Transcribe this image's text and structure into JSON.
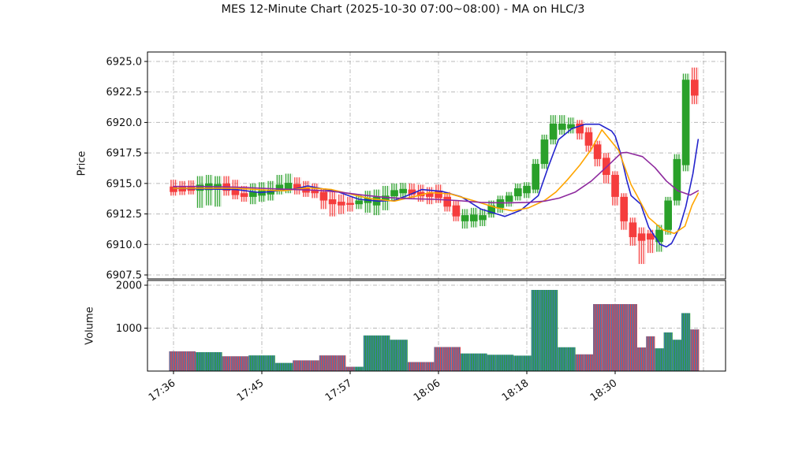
{
  "title": "MES 12-Minute Chart (2025-10-30 07:00~08:00) - MA on HLC/3",
  "chart_data": {
    "type": "candlestick",
    "symbol": "MES",
    "interval_label": "12-Minute",
    "session_label": "2025-10-30 07:00~08:00",
    "ma_source_label": "MA on HLC/3",
    "grid": true,
    "grid_style": "dashdot",
    "panels": [
      "price",
      "volume"
    ],
    "price_axis": {
      "label": "Price",
      "tick_values": [
        6925.0,
        6922.5,
        6920.0,
        6917.5,
        6915.0,
        6912.5,
        6910.0,
        6907.5
      ],
      "tick_labels": [
        "6925.0",
        "6922.5",
        "6920.0",
        "6917.5",
        "6915.0",
        "6912.5",
        "6910.0",
        "6907.5"
      ],
      "range": [
        6906.9,
        6925.9
      ]
    },
    "volume_axis": {
      "label": "Volume",
      "tick_values": [
        2000,
        1000
      ],
      "tick_labels": [
        "2000",
        "1000"
      ],
      "range": [
        0,
        2110
      ]
    },
    "x_axis": {
      "tick_labels": [
        "17:36",
        "17:45",
        "17:57",
        "18:06",
        "18:18",
        "18:30"
      ],
      "tick_indices": [
        0,
        10,
        20,
        30,
        40,
        50
      ],
      "unlabeled_grid_index": 60
    },
    "colors": {
      "up": "#2aa02a",
      "down": "#f53d3d",
      "volume_bar": "#3d7ab5",
      "ma_fast": "#2323cc",
      "ma_medium": "#ffa500",
      "ma_slow": "#8e2a9e",
      "grid": "#b8b8b8",
      "spine": "#000000"
    },
    "candles": [
      [
        6914.75,
        6915.3,
        6914.0,
        6914.3,
        460
      ],
      [
        6914.7,
        6915.2,
        6914.05,
        6914.35,
        460
      ],
      [
        6914.75,
        6915.25,
        6914.1,
        6914.4,
        460
      ],
      [
        6914.4,
        6915.6,
        6913.0,
        6914.9,
        440
      ],
      [
        6914.45,
        6915.7,
        6913.2,
        6915.0,
        440
      ],
      [
        6914.5,
        6915.6,
        6913.1,
        6914.95,
        440
      ],
      [
        6915.0,
        6915.6,
        6914.0,
        6914.4,
        345
      ],
      [
        6914.5,
        6915.3,
        6913.7,
        6914.05,
        345
      ],
      [
        6914.2,
        6914.8,
        6913.5,
        6913.9,
        345
      ],
      [
        6913.9,
        6915.0,
        6913.3,
        6914.3,
        365
      ],
      [
        6914.0,
        6915.1,
        6913.5,
        6914.4,
        365
      ],
      [
        6914.1,
        6915.2,
        6913.6,
        6914.45,
        365
      ],
      [
        6914.45,
        6915.7,
        6914.1,
        6914.9,
        190
      ],
      [
        6914.55,
        6915.8,
        6914.2,
        6915.05,
        190
      ],
      [
        6914.95,
        6915.5,
        6914.1,
        6914.45,
        250
      ],
      [
        6914.6,
        6915.2,
        6913.9,
        6914.25,
        250
      ],
      [
        6914.45,
        6915.0,
        6913.8,
        6914.2,
        250
      ],
      [
        6914.3,
        6914.6,
        6912.9,
        6913.6,
        365
      ],
      [
        6913.7,
        6914.3,
        6912.3,
        6913.3,
        365
      ],
      [
        6913.5,
        6914.1,
        6912.5,
        6913.2,
        365
      ],
      [
        6913.4,
        6913.9,
        6912.7,
        6913.25,
        100
      ],
      [
        6913.3,
        6914.1,
        6912.9,
        6913.6,
        100
      ],
      [
        6913.4,
        6914.4,
        6912.6,
        6913.8,
        830
      ],
      [
        6913.2,
        6914.5,
        6912.4,
        6913.9,
        830
      ],
      [
        6913.6,
        6914.8,
        6912.8,
        6914.0,
        830
      ],
      [
        6913.95,
        6915.0,
        6913.6,
        6914.45,
        730
      ],
      [
        6914.2,
        6915.05,
        6913.8,
        6914.55,
        730
      ],
      [
        6914.5,
        6915.0,
        6913.8,
        6914.1,
        210
      ],
      [
        6914.3,
        6914.9,
        6913.5,
        6913.95,
        210
      ],
      [
        6914.2,
        6914.7,
        6913.3,
        6913.9,
        210
      ],
      [
        6914.4,
        6914.9,
        6913.4,
        6913.8,
        560
      ],
      [
        6913.9,
        6914.3,
        6912.7,
        6913.1,
        560
      ],
      [
        6913.2,
        6913.6,
        6911.9,
        6912.3,
        560
      ],
      [
        6911.9,
        6912.9,
        6911.3,
        6912.4,
        410
      ],
      [
        6911.9,
        6913.0,
        6911.4,
        6912.45,
        410
      ],
      [
        6912.0,
        6912.9,
        6911.5,
        6912.4,
        410
      ],
      [
        6912.5,
        6913.6,
        6912.2,
        6913.2,
        380
      ],
      [
        6913.0,
        6914.0,
        6912.6,
        6913.7,
        380
      ],
      [
        6913.5,
        6914.3,
        6913.1,
        6914.0,
        380
      ],
      [
        6913.95,
        6915.0,
        6913.6,
        6914.6,
        360
      ],
      [
        6914.2,
        6915.1,
        6913.8,
        6914.8,
        360
      ],
      [
        6914.5,
        6917.0,
        6914.2,
        6916.6,
        1890
      ],
      [
        6916.6,
        6919.0,
        6916.2,
        6918.6,
        1890
      ],
      [
        6918.6,
        6920.6,
        6918.2,
        6919.9,
        1890
      ],
      [
        6919.4,
        6920.6,
        6919.0,
        6919.9,
        555
      ],
      [
        6919.5,
        6920.4,
        6919.1,
        6919.85,
        555
      ],
      [
        6919.9,
        6920.2,
        6918.6,
        6919.1,
        390
      ],
      [
        6919.2,
        6919.6,
        6917.6,
        6918.1,
        390
      ],
      [
        6918.2,
        6918.5,
        6916.4,
        6917.0,
        1560
      ],
      [
        6917.1,
        6917.5,
        6915.0,
        6915.7,
        1560
      ],
      [
        6915.7,
        6916.0,
        6913.2,
        6913.9,
        1560
      ],
      [
        6913.9,
        6914.2,
        6911.2,
        6911.9,
        1560
      ],
      [
        6911.8,
        6912.2,
        6909.9,
        6910.6,
        1560
      ],
      [
        6910.9,
        6911.4,
        6908.4,
        6910.3,
        550
      ],
      [
        6910.9,
        6911.2,
        6909.3,
        6910.4,
        810
      ],
      [
        6910.2,
        6911.6,
        6909.4,
        6911.2,
        530
      ],
      [
        6911.2,
        6913.9,
        6910.8,
        6913.6,
        900
      ],
      [
        6913.6,
        6917.4,
        6913.2,
        6917.0,
        730
      ],
      [
        6916.5,
        6924.0,
        6916.0,
        6923.5,
        1350
      ],
      [
        6923.5,
        6924.5,
        6921.5,
        6922.2,
        970
      ]
    ],
    "moving_averages": [
      {
        "name": "MA-fast",
        "color_key": "ma_fast",
        "points": [
          [
            0,
            6914.6
          ],
          [
            2.9,
            6914.55
          ],
          [
            7.1,
            6914.5
          ],
          [
            9.8,
            6914.25
          ],
          [
            13.8,
            6914.55
          ],
          [
            15.2,
            6914.8
          ],
          [
            18.7,
            6914.3
          ],
          [
            21.0,
            6913.7
          ],
          [
            23.2,
            6913.55
          ],
          [
            25.0,
            6913.6
          ],
          [
            26.8,
            6914.1
          ],
          [
            28.1,
            6914.5
          ],
          [
            30.4,
            6914.35
          ],
          [
            32.6,
            6913.9
          ],
          [
            34.8,
            6912.9
          ],
          [
            37.5,
            6912.3
          ],
          [
            39.3,
            6912.8
          ],
          [
            41.3,
            6914.0
          ],
          [
            42.4,
            6916.3
          ],
          [
            43.6,
            6918.6
          ],
          [
            45.1,
            6919.5
          ],
          [
            46.6,
            6919.85
          ],
          [
            48.2,
            6919.85
          ],
          [
            49.6,
            6919.3
          ],
          [
            50.0,
            6918.9
          ],
          [
            50.6,
            6917.5
          ],
          [
            51.3,
            6915.3
          ],
          [
            51.8,
            6914.0
          ],
          [
            52.9,
            6913.3
          ],
          [
            53.8,
            6911.4
          ],
          [
            55.1,
            6910.0
          ],
          [
            55.8,
            6909.8
          ],
          [
            56.4,
            6910.1
          ],
          [
            57.3,
            6911.4
          ],
          [
            58.0,
            6913.1
          ],
          [
            58.8,
            6915.8
          ],
          [
            59.4,
            6918.6
          ]
        ]
      },
      {
        "name": "MA-medium",
        "color_key": "ma_medium",
        "points": [
          [
            0,
            6914.6
          ],
          [
            3.1,
            6914.6
          ],
          [
            7.1,
            6914.6
          ],
          [
            10.7,
            6914.45
          ],
          [
            12.5,
            6914.4
          ],
          [
            15.2,
            6914.65
          ],
          [
            17.9,
            6914.5
          ],
          [
            20.5,
            6914.05
          ],
          [
            22.3,
            6913.75
          ],
          [
            25.0,
            6913.55
          ],
          [
            27.7,
            6914.0
          ],
          [
            29.0,
            6914.25
          ],
          [
            31.3,
            6914.15
          ],
          [
            33.9,
            6913.6
          ],
          [
            36.6,
            6913.0
          ],
          [
            38.4,
            6912.75
          ],
          [
            40.2,
            6913.0
          ],
          [
            42.0,
            6913.6
          ],
          [
            43.3,
            6914.3
          ],
          [
            44.6,
            6915.3
          ],
          [
            46.0,
            6916.5
          ],
          [
            47.3,
            6917.8
          ],
          [
            48.5,
            6919.4
          ],
          [
            50.4,
            6917.7
          ],
          [
            51.8,
            6914.9
          ],
          [
            52.4,
            6914.1
          ],
          [
            53.8,
            6912.2
          ],
          [
            55.4,
            6911.2
          ],
          [
            56.7,
            6910.9
          ],
          [
            57.9,
            6911.5
          ],
          [
            58.7,
            6913.2
          ],
          [
            59.4,
            6914.2
          ]
        ]
      },
      {
        "name": "MA-slow",
        "color_key": "ma_slow",
        "points": [
          [
            0,
            6914.75
          ],
          [
            3.1,
            6914.75
          ],
          [
            7.1,
            6914.7
          ],
          [
            11.6,
            6914.55
          ],
          [
            16.1,
            6914.45
          ],
          [
            18.7,
            6914.3
          ],
          [
            21.4,
            6914.05
          ],
          [
            24.1,
            6913.85
          ],
          [
            26.8,
            6913.75
          ],
          [
            29.5,
            6913.7
          ],
          [
            32.1,
            6913.6
          ],
          [
            34.8,
            6913.45
          ],
          [
            37.5,
            6913.4
          ],
          [
            40.2,
            6913.45
          ],
          [
            42.0,
            6913.55
          ],
          [
            43.7,
            6913.8
          ],
          [
            45.5,
            6914.3
          ],
          [
            47.3,
            6915.2
          ],
          [
            49.1,
            6916.4
          ],
          [
            50.7,
            6917.5
          ],
          [
            51.3,
            6917.55
          ],
          [
            53.1,
            6917.2
          ],
          [
            54.5,
            6916.3
          ],
          [
            55.8,
            6915.2
          ],
          [
            57.1,
            6914.4
          ],
          [
            58.5,
            6914.05
          ],
          [
            59.4,
            6914.4
          ]
        ]
      }
    ]
  }
}
